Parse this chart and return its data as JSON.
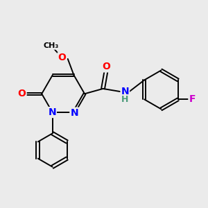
{
  "bg_color": "#ebebeb",
  "atom_colors": {
    "C": "#000000",
    "N": "#0000ff",
    "O": "#ff0000",
    "F": "#cc00cc",
    "H": "#4a9a7a"
  },
  "bond_color": "#000000",
  "figsize": [
    3.0,
    3.0
  ],
  "dpi": 100,
  "lw": 1.4,
  "fs": 10,
  "dbl_off": 0.055
}
